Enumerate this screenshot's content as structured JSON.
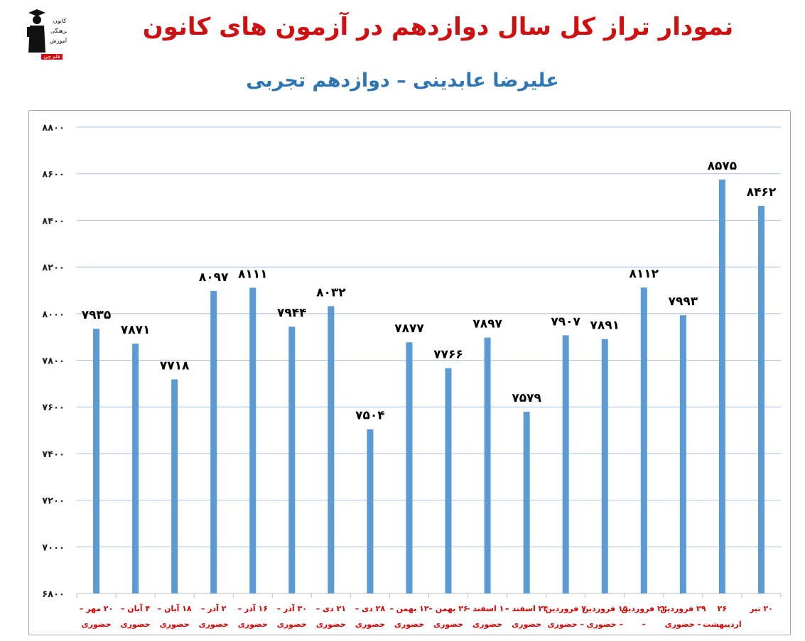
{
  "title": "نمودار تراز کل سال دوازدهم در آزمون های کانون",
  "subtitle": "علیرضا عابدینی – دوازدهم تجربی",
  "logo": {
    "icon": "kanoon-logo-icon",
    "lines": [
      "کانون",
      "فرهنگی",
      "آموزش",
      "قلم چی"
    ]
  },
  "colors": {
    "title": "#d01010",
    "subtitle": "#2e75b6",
    "bar": "#5b9bd5",
    "grid": "#a9c4e4",
    "xlabel": "#e00000"
  },
  "chart_data": {
    "type": "bar",
    "ylim": [
      6800,
      8800
    ],
    "yticks": [
      6800,
      7000,
      7200,
      7400,
      7600,
      7800,
      8000,
      8200,
      8400,
      8600,
      8800
    ],
    "ytick_labels": [
      "۶۸۰۰",
      "۷۰۰۰",
      "۷۲۰۰",
      "۷۴۰۰",
      "۷۶۰۰",
      "۷۸۰۰",
      "۸۰۰۰",
      "۸۲۰۰",
      "۸۴۰۰",
      "۸۶۰۰",
      "۸۸۰۰"
    ],
    "grid": true,
    "categories": [
      [
        "۲۰ مهر –",
        "حضوری"
      ],
      [
        "۴ آبان –",
        "حضوری"
      ],
      [
        "۱۸ آبان –",
        "حضوری"
      ],
      [
        "۲ آذر –",
        "حضوری"
      ],
      [
        "۱۶ آذر –",
        "حضوری"
      ],
      [
        "۳۰ آذر –",
        "حضوری"
      ],
      [
        "۲۱ دی –",
        "حضوری"
      ],
      [
        "۲۸ دی –",
        "حضوری"
      ],
      [
        "۱۲ بهمن –",
        "حضوری"
      ],
      [
        "۲۶ بهمن –",
        "حضوری"
      ],
      [
        "۱۰ اسفند –",
        "حضوری"
      ],
      [
        "۲۴ اسفند –",
        "حضوری"
      ],
      [
        "۷ فروردین",
        "– حضوری"
      ],
      [
        "۱۵ فروردین",
        "– حضوری"
      ],
      [
        "۲۲ فروردین",
        "–"
      ],
      [
        "۲۹ فروردین",
        "– حضوری"
      ],
      [
        "۲۶",
        "اردیبهشت"
      ],
      [
        "۲۰ تیر",
        ""
      ]
    ],
    "values": [
      7935,
      7871,
      7718,
      8097,
      8111,
      7944,
      8032,
      7504,
      7877,
      7766,
      7897,
      7579,
      7907,
      7891,
      8112,
      7993,
      8575,
      8462
    ],
    "value_labels": [
      "۷۹۳۵",
      "۷۸۷۱",
      "۷۷۱۸",
      "۸۰۹۷",
      "۸۱۱۱",
      "۷۹۴۴",
      "۸۰۳۲",
      "۷۵۰۴",
      "۷۸۷۷",
      "۷۷۶۶",
      "۷۸۹۷",
      "۷۵۷۹",
      "۷۹۰۷",
      "۷۸۹۱",
      "۸۱۱۲",
      "۷۹۹۳",
      "۸۵۷۵",
      "۸۴۶۲"
    ]
  }
}
